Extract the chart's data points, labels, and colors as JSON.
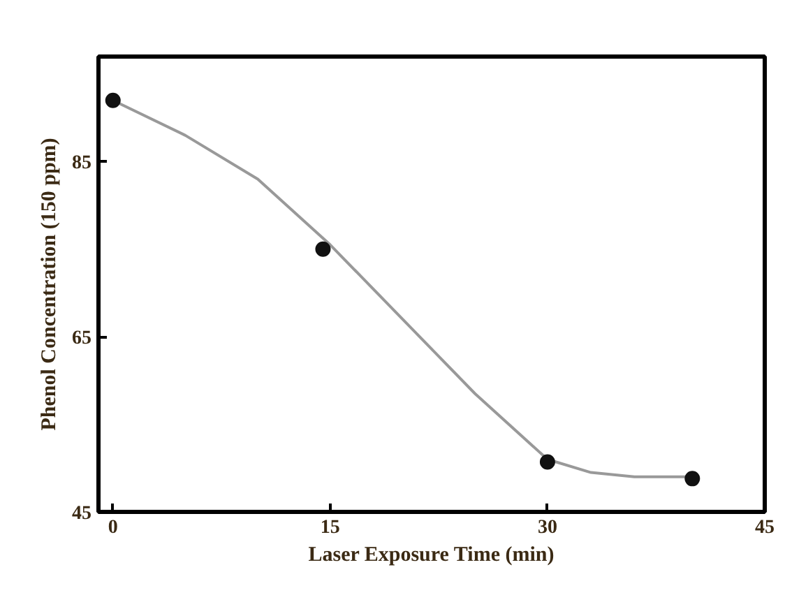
{
  "chart_data": {
    "type": "line",
    "xlabel": "Laser Exposure Time (min)",
    "ylabel": "Phenol Concentration (150 ppm)",
    "xlim": [
      -1,
      45
    ],
    "ylim": [
      45,
      97
    ],
    "xticks": [
      0,
      15,
      30,
      45
    ],
    "yticks": [
      45,
      65,
      85
    ],
    "grid": false,
    "series": [
      {
        "color": "#999999",
        "marker": "none",
        "x": [
          0,
          5,
          10,
          15,
          20,
          25,
          30,
          33,
          36,
          40
        ],
        "values": [
          92,
          88,
          83,
          75.5,
          67,
          58.5,
          51,
          49.5,
          49,
          49
        ]
      },
      {
        "type": "scatter",
        "marker": "circle",
        "color": "#111111",
        "x": [
          0,
          14.5,
          30,
          40
        ],
        "values": [
          92,
          75,
          50.7,
          48.8
        ]
      }
    ]
  }
}
